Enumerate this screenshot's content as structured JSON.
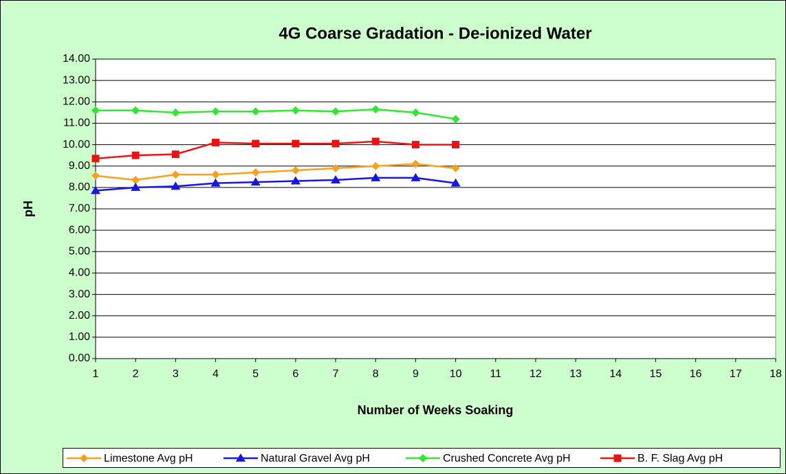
{
  "chart_data": {
    "type": "line",
    "title": "4G Coarse Gradation - De-ionized Water",
    "xlabel": "Number of Weeks Soaking",
    "ylabel": "pH",
    "x": [
      1,
      2,
      3,
      4,
      5,
      6,
      7,
      8,
      9,
      10
    ],
    "series": [
      {
        "name": "Limestone Avg pH",
        "color": "#f9a11b",
        "marker": "diamond",
        "values": [
          8.55,
          8.35,
          8.6,
          8.6,
          8.7,
          8.8,
          8.9,
          9.0,
          9.1,
          8.9
        ]
      },
      {
        "name": "Natural Gravel Avg pH",
        "color": "#1515e6",
        "marker": "triangle",
        "values": [
          7.85,
          8.0,
          8.05,
          8.2,
          8.25,
          8.3,
          8.35,
          8.45,
          8.45,
          8.2
        ]
      },
      {
        "name": "Crushed Concrete Avg pH",
        "color": "#2ee82e",
        "marker": "diamond",
        "values": [
          11.6,
          11.6,
          11.5,
          11.55,
          11.55,
          11.6,
          11.55,
          11.65,
          11.5,
          11.2
        ]
      },
      {
        "name": "B. F. Slag Avg pH",
        "color": "#ee1111",
        "marker": "square",
        "values": [
          9.35,
          9.5,
          9.55,
          10.1,
          10.05,
          10.05,
          10.05,
          10.15,
          10.0,
          10.0
        ]
      }
    ],
    "xlim": [
      1,
      18
    ],
    "xticks": [
      1,
      2,
      3,
      4,
      5,
      6,
      7,
      8,
      9,
      10,
      11,
      12,
      13,
      14,
      15,
      16,
      17,
      18
    ],
    "ylim": [
      0,
      14
    ],
    "yticks": [
      {
        "value": 0,
        "label": "0.00"
      },
      {
        "value": 1,
        "label": "1.00"
      },
      {
        "value": 2,
        "label": "2.00"
      },
      {
        "value": 3,
        "label": "3.00"
      },
      {
        "value": 4,
        "label": "4.00"
      },
      {
        "value": 5,
        "label": "5.00"
      },
      {
        "value": 6,
        "label": "6.00"
      },
      {
        "value": 7,
        "label": "7.00"
      },
      {
        "value": 8,
        "label": "8.00"
      },
      {
        "value": 9,
        "label": "9.00"
      },
      {
        "value": 10,
        "label": "10.00"
      },
      {
        "value": 11,
        "label": "11.00"
      },
      {
        "value": 12,
        "label": "12.00"
      },
      {
        "value": 13,
        "label": "13.00"
      },
      {
        "value": 14,
        "label": "14.00"
      }
    ],
    "grid": true,
    "legend": "bottom"
  }
}
